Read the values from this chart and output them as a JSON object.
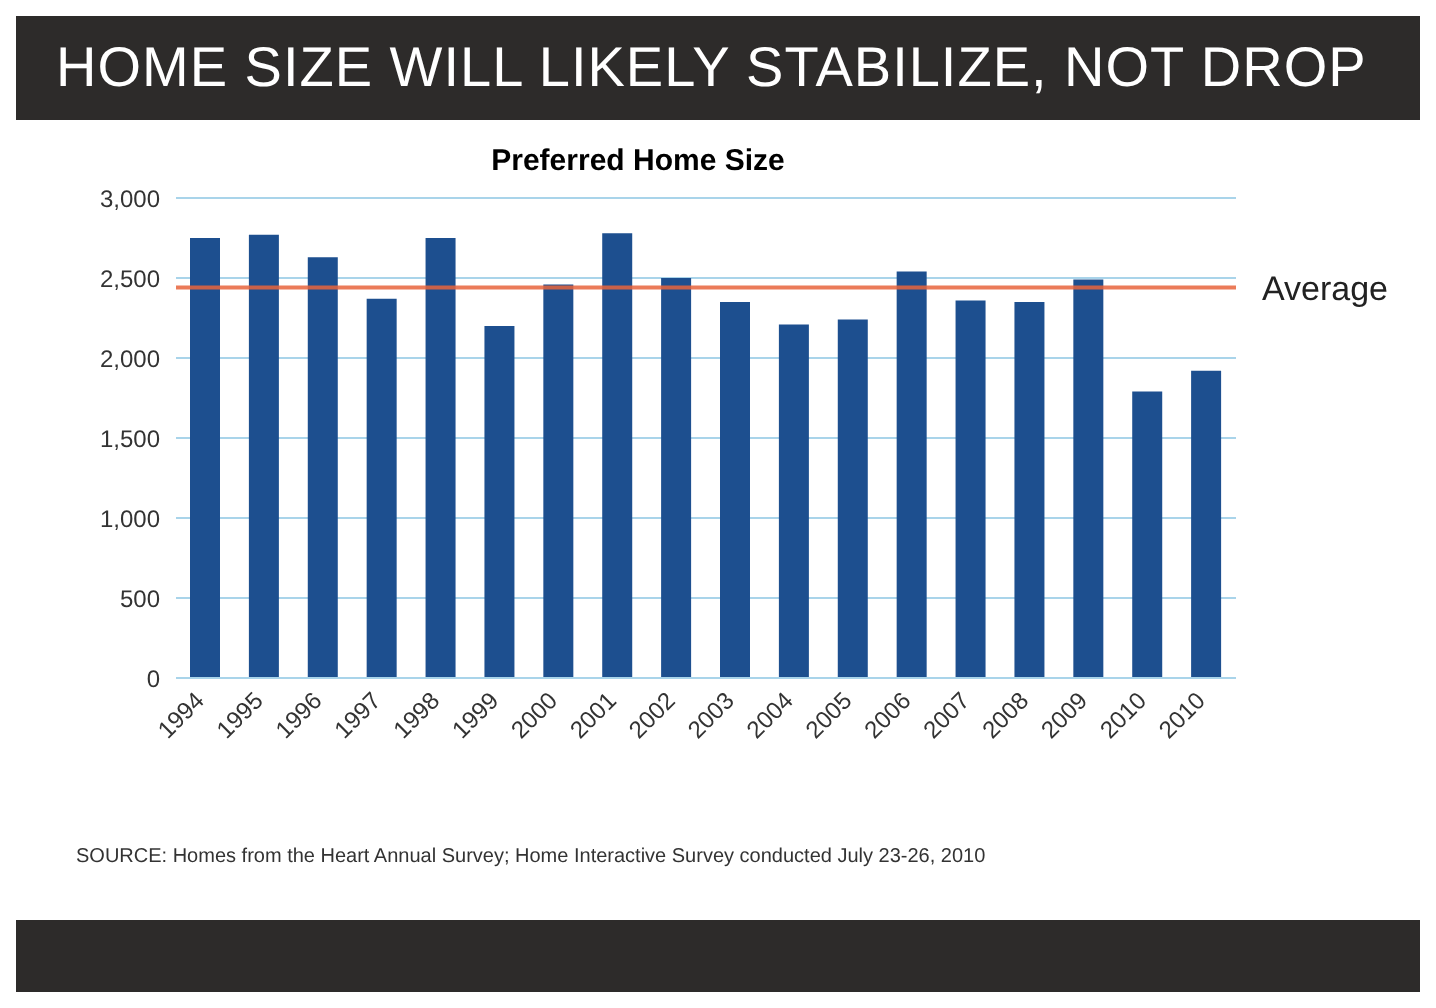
{
  "chart_data": {
    "type": "bar",
    "title": "HOME SIZE WILL LIKELY STABILIZE, NOT DROP",
    "subtitle": "Preferred Home Size",
    "categories": [
      "1994",
      "1995",
      "1996",
      "1997",
      "1998",
      "1999",
      "2000",
      "2001",
      "2002",
      "2003",
      "2004",
      "2005",
      "2006",
      "2007",
      "2008",
      "2009",
      "2010",
      "2010"
    ],
    "values": [
      2750,
      2770,
      2630,
      2370,
      2750,
      2200,
      2460,
      2780,
      2500,
      2350,
      2210,
      2240,
      2540,
      2360,
      2350,
      2490,
      1790,
      1920
    ],
    "color": "#1d4f8f",
    "ylim": [
      0,
      3000
    ],
    "yticks": [
      {
        "value": 0,
        "label": "0"
      },
      {
        "value": 500,
        "label": "500"
      },
      {
        "value": 1000,
        "label": "1,000"
      },
      {
        "value": 1500,
        "label": "1,500"
      },
      {
        "value": 2000,
        "label": "2,000"
      },
      {
        "value": 2500,
        "label": "2,500"
      },
      {
        "value": 3000,
        "label": "3,000"
      }
    ],
    "grid": "y",
    "ref_lines": [
      {
        "axis": "y",
        "value": 2440,
        "label": "Average",
        "color": "#e8643c"
      }
    ],
    "annotations": [
      "SOURCE: Homes from the Heart Annual Survey; Home Interactive Survey conducted July 23-26, 2010"
    ]
  }
}
